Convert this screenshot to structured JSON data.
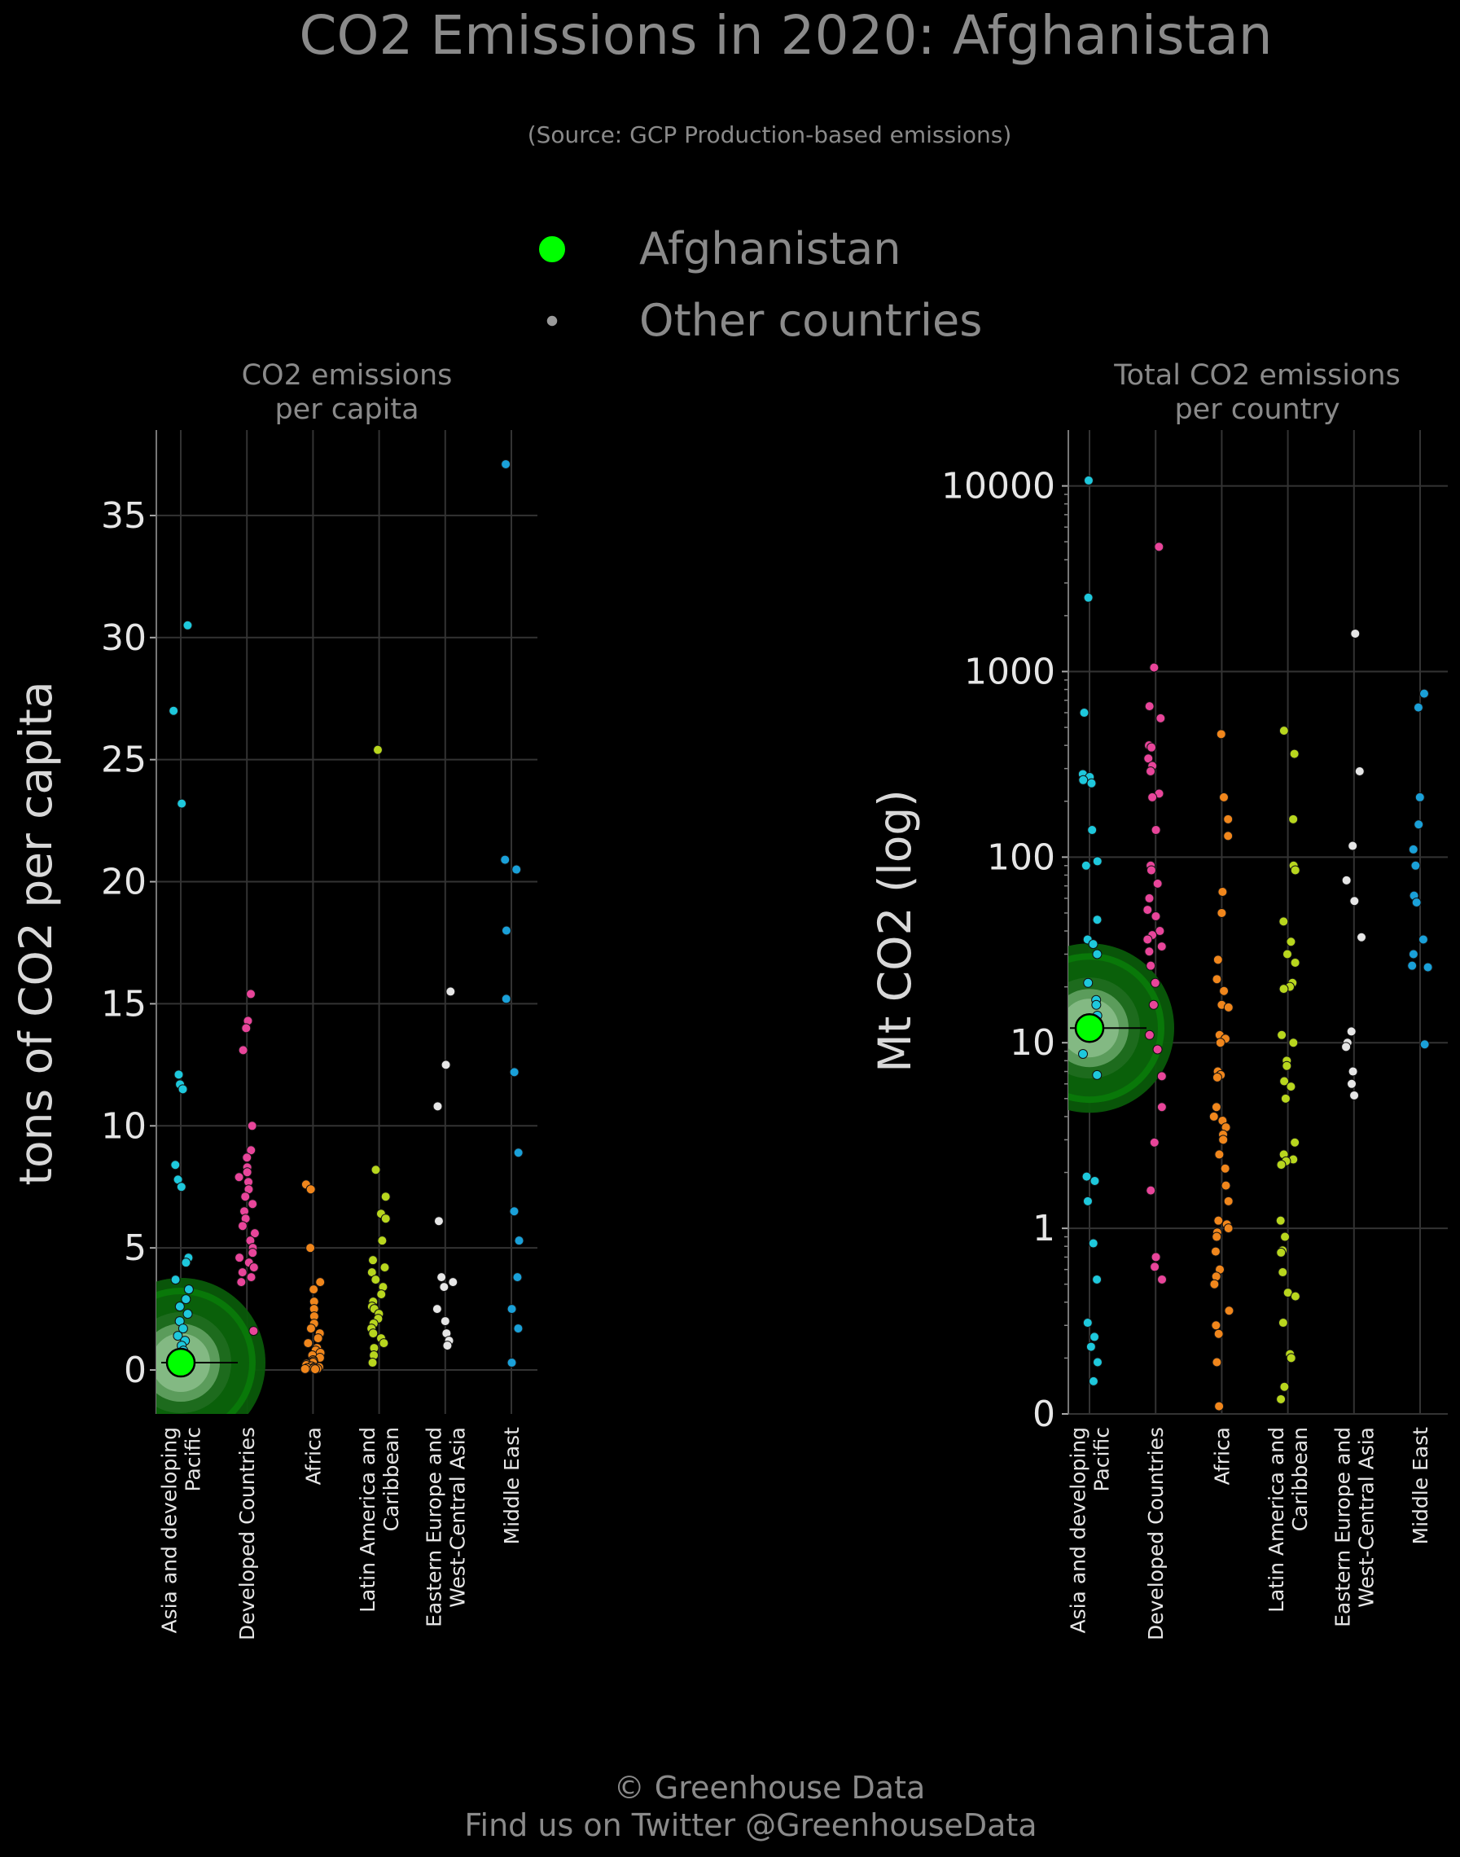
{
  "title": "CO2 Emissions in 2020: Afghanistan",
  "subtitle": "(Source: GCP Production-based emissions)",
  "legend": {
    "highlight_label": "Afghanistan",
    "others_label": "Other countries"
  },
  "footer": {
    "copyright": "© Greenhouse Data",
    "twitter": "Find us on Twitter @GreenhouseData"
  },
  "colors": {
    "background": "#000000",
    "highlight": "#00ff00",
    "highlight_halo": "#0a7a0a",
    "Asia and developing Pacific": "#1ec8dc",
    "Developed Countries": "#e8459a",
    "Africa": "#f0861c",
    "Latin America and Caribbean": "#b8d61e",
    "Eastern Europe and West-Central Asia": "#e6e6e6",
    "Middle East": "#1aa0d8"
  },
  "chart_data": [
    {
      "type": "scatter",
      "title_lines": [
        "CO2 emissions",
        "per capita"
      ],
      "ylabel": "tons of CO2 per capita",
      "ylim": [
        -1.8,
        38.5
      ],
      "yticks": [
        0,
        5,
        10,
        15,
        20,
        25,
        30,
        35
      ],
      "ytick_labels": [
        "0",
        "5",
        "10",
        "15",
        "20",
        "25",
        "30",
        "35"
      ],
      "grid": true,
      "categories": [
        "Asia and developing Pacific",
        "Developed Countries",
        "Africa",
        "Latin America and Caribbean",
        "Eastern Europe and West-Central Asia",
        "Middle East"
      ],
      "category_labels": [
        [
          "Asia and developing",
          "Pacific"
        ],
        [
          "Developed Countries"
        ],
        [
          "Africa"
        ],
        [
          "Latin America and",
          "Caribbean"
        ],
        [
          "Eastern Europe and",
          "West-Central Asia"
        ],
        [
          "Middle East"
        ]
      ],
      "highlight": {
        "name": "Afghanistan",
        "category": "Asia and developing Pacific",
        "value": 0.3
      },
      "series": [
        {
          "name": "Asia and developing Pacific",
          "values": [
            30.5,
            27.0,
            23.2,
            12.1,
            11.7,
            11.5,
            8.4,
            7.8,
            7.5,
            4.6,
            4.4,
            3.7,
            3.3,
            2.9,
            2.6,
            2.3,
            2.0,
            1.7,
            1.4,
            1.2,
            1.0,
            0.8,
            0.6,
            0.4,
            0.3
          ]
        },
        {
          "name": "Developed Countries",
          "values": [
            15.4,
            14.3,
            14.0,
            13.1,
            10.0,
            9.0,
            8.7,
            8.3,
            8.1,
            7.9,
            7.7,
            7.4,
            7.1,
            6.8,
            6.5,
            6.2,
            5.9,
            5.6,
            5.3,
            5.0,
            4.8,
            4.6,
            4.4,
            4.2,
            4.0,
            3.8,
            3.6,
            1.6
          ]
        },
        {
          "name": "Africa",
          "values": [
            7.6,
            7.4,
            5.0,
            3.6,
            3.3,
            2.8,
            2.5,
            2.2,
            1.9,
            1.7,
            1.5,
            1.3,
            1.1,
            0.9,
            0.8,
            0.7,
            0.6,
            0.5,
            0.4,
            0.35,
            0.3,
            0.25,
            0.2,
            0.15,
            0.12,
            0.1,
            0.08,
            0.06,
            0.05,
            0.04,
            0.03
          ]
        },
        {
          "name": "Latin America and Caribbean",
          "values": [
            25.4,
            8.2,
            7.1,
            6.4,
            6.2,
            5.3,
            4.5,
            4.2,
            4.0,
            3.7,
            3.4,
            3.1,
            2.8,
            2.6,
            2.5,
            2.3,
            2.1,
            1.9,
            1.7,
            1.5,
            1.3,
            1.1,
            0.9,
            0.6,
            0.3
          ]
        },
        {
          "name": "Eastern Europe and West-Central Asia",
          "values": [
            15.5,
            12.5,
            10.8,
            6.1,
            3.8,
            3.6,
            3.4,
            2.5,
            2.0,
            1.5,
            1.2,
            1.0
          ]
        },
        {
          "name": "Middle East",
          "values": [
            37.1,
            20.9,
            20.5,
            18.0,
            15.2,
            12.2,
            8.9,
            6.5,
            5.3,
            3.8,
            2.5,
            1.7,
            0.3
          ]
        }
      ]
    },
    {
      "type": "scatter",
      "title_lines": [
        "Total CO2 emissions",
        "per country"
      ],
      "ylabel": "Mt CO2 (log)",
      "yscale": "log",
      "ylim": [
        0.1,
        20000
      ],
      "yticks": [
        0.1,
        1,
        10,
        100,
        1000,
        10000
      ],
      "ytick_labels": [
        "0",
        "1",
        "10",
        "100",
        "1000",
        "10000"
      ],
      "grid": true,
      "categories": [
        "Asia and developing Pacific",
        "Developed Countries",
        "Africa",
        "Latin America and Caribbean",
        "Eastern Europe and West-Central Asia",
        "Middle East"
      ],
      "category_labels": [
        [
          "Asia and developing",
          "Pacific"
        ],
        [
          "Developed Countries"
        ],
        [
          "Africa"
        ],
        [
          "Latin America and",
          "Caribbean"
        ],
        [
          "Eastern Europe and",
          "West-Central Asia"
        ],
        [
          "Middle East"
        ]
      ],
      "highlight": {
        "name": "Afghanistan",
        "category": "Asia and developing Pacific",
        "value": 12
      },
      "series": [
        {
          "name": "Asia and developing Pacific",
          "values": [
            10700,
            2500,
            600,
            280,
            270,
            260,
            250,
            140,
            95,
            90,
            46,
            36,
            34,
            30,
            21,
            17,
            16,
            14,
            8.7,
            6.7,
            1.9,
            1.8,
            1.4,
            0.83,
            0.53,
            0.31,
            0.26,
            0.23,
            0.19,
            0.15
          ]
        },
        {
          "name": "Developed Countries",
          "values": [
            4700,
            1050,
            650,
            560,
            400,
            390,
            340,
            310,
            290,
            220,
            210,
            140,
            90,
            85,
            72,
            60,
            52,
            48,
            40,
            38,
            36,
            33,
            31,
            26,
            21,
            16,
            11,
            9.2,
            6.6,
            4.5,
            2.9,
            1.6,
            0.7,
            0.62,
            0.53
          ]
        },
        {
          "name": "Africa",
          "values": [
            460,
            210,
            160,
            130,
            65,
            50,
            28,
            22,
            19,
            16,
            15.5,
            11,
            10.5,
            10,
            7,
            6.7,
            6.5,
            4.5,
            4,
            3.8,
            3.5,
            3.2,
            3,
            2.5,
            2.1,
            1.7,
            1.4,
            1.1,
            1.05,
            1.0,
            0.95,
            0.9,
            0.75,
            0.6,
            0.55,
            0.5,
            0.36,
            0.3,
            0.27,
            0.19,
            0.11
          ]
        },
        {
          "name": "Latin America and Caribbean",
          "values": [
            480,
            360,
            160,
            90,
            85,
            45,
            35,
            30,
            27,
            21,
            20,
            19.5,
            11,
            10,
            8,
            7.5,
            6.2,
            5.8,
            5,
            2.9,
            2.5,
            2.35,
            2.3,
            2.2,
            1.1,
            0.9,
            0.76,
            0.74,
            0.58,
            0.45,
            0.43,
            0.31,
            0.21,
            0.2,
            0.14,
            0.12
          ]
        },
        {
          "name": "Eastern Europe and West-Central Asia",
          "values": [
            1600,
            290,
            115,
            75,
            58,
            37,
            11.5,
            10,
            9.5,
            7,
            6,
            5.2
          ]
        },
        {
          "name": "Middle East",
          "values": [
            760,
            640,
            210,
            150,
            110,
            90,
            62,
            57,
            36,
            30,
            26,
            25.5,
            9.8
          ]
        }
      ]
    }
  ]
}
